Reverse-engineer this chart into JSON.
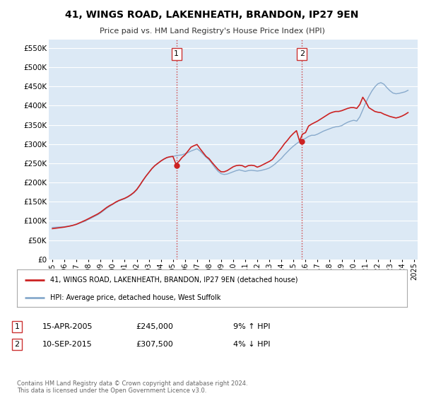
{
  "title": "41, WINGS ROAD, LAKENHEATH, BRANDON, IP27 9EN",
  "subtitle": "Price paid vs. HM Land Registry's House Price Index (HPI)",
  "ylabel_values": [
    0,
    50000,
    100000,
    150000,
    200000,
    250000,
    300000,
    350000,
    400000,
    450000,
    500000,
    550000
  ],
  "xlim_start": 1994.7,
  "xlim_end": 2025.3,
  "ylim_min": 0,
  "ylim_max": 572000,
  "bg_color": "#dce9f5",
  "outer_bg_color": "#ffffff",
  "grid_color": "#ffffff",
  "red_color": "#cc2222",
  "blue_color": "#88aacc",
  "transaction1_x": 2005.3,
  "transaction1_y": 245000,
  "transaction1_label": "1",
  "transaction2_x": 2015.7,
  "transaction2_y": 307500,
  "transaction2_label": "2",
  "legend_line1": "41, WINGS ROAD, LAKENHEATH, BRANDON, IP27 9EN (detached house)",
  "legend_line2": "HPI: Average price, detached house, West Suffolk",
  "note1_date": "15-APR-2005",
  "note1_price": "£245,000",
  "note1_hpi": "9% ↑ HPI",
  "note2_date": "10-SEP-2015",
  "note2_price": "£307,500",
  "note2_hpi": "4% ↓ HPI",
  "footer": "Contains HM Land Registry data © Crown copyright and database right 2024.\nThis data is licensed under the Open Government Licence v3.0.",
  "hpi_data_x": [
    1995.0,
    1995.25,
    1995.5,
    1995.75,
    1996.0,
    1996.25,
    1996.5,
    1996.75,
    1997.0,
    1997.25,
    1997.5,
    1997.75,
    1998.0,
    1998.25,
    1998.5,
    1998.75,
    1999.0,
    1999.25,
    1999.5,
    1999.75,
    2000.0,
    2000.25,
    2000.5,
    2000.75,
    2001.0,
    2001.25,
    2001.5,
    2001.75,
    2002.0,
    2002.25,
    2002.5,
    2002.75,
    2003.0,
    2003.25,
    2003.5,
    2003.75,
    2004.0,
    2004.25,
    2004.5,
    2004.75,
    2005.0,
    2005.25,
    2005.5,
    2005.75,
    2006.0,
    2006.25,
    2006.5,
    2006.75,
    2007.0,
    2007.25,
    2007.5,
    2007.75,
    2008.0,
    2008.25,
    2008.5,
    2008.75,
    2009.0,
    2009.25,
    2009.5,
    2009.75,
    2010.0,
    2010.25,
    2010.5,
    2010.75,
    2011.0,
    2011.25,
    2011.5,
    2011.75,
    2012.0,
    2012.25,
    2012.5,
    2012.75,
    2013.0,
    2013.25,
    2013.5,
    2013.75,
    2014.0,
    2014.25,
    2014.5,
    2014.75,
    2015.0,
    2015.25,
    2015.5,
    2015.75,
    2016.0,
    2016.25,
    2016.5,
    2016.75,
    2017.0,
    2017.25,
    2017.5,
    2017.75,
    2018.0,
    2018.25,
    2018.5,
    2018.75,
    2019.0,
    2019.25,
    2019.5,
    2019.75,
    2020.0,
    2020.25,
    2020.5,
    2020.75,
    2021.0,
    2021.25,
    2021.5,
    2021.75,
    2022.0,
    2022.25,
    2022.5,
    2022.75,
    2023.0,
    2023.25,
    2023.5,
    2023.75,
    2024.0,
    2024.25,
    2024.5
  ],
  "hpi_data_y": [
    83000,
    83500,
    84000,
    84500,
    85000,
    86000,
    87500,
    89000,
    91000,
    94000,
    97000,
    100000,
    104000,
    108000,
    112000,
    116000,
    121000,
    127000,
    133000,
    138000,
    143000,
    148000,
    152000,
    155000,
    158000,
    162000,
    167000,
    173000,
    181000,
    192000,
    204000,
    216000,
    226000,
    236000,
    244000,
    250000,
    256000,
    261000,
    265000,
    267000,
    268000,
    270000,
    271000,
    272000,
    275000,
    278000,
    282000,
    285000,
    288000,
    282000,
    274000,
    266000,
    259000,
    249000,
    238000,
    229000,
    223000,
    221000,
    222000,
    225000,
    228000,
    231000,
    233000,
    231000,
    229000,
    231000,
    232000,
    231000,
    230000,
    231000,
    233000,
    235000,
    238000,
    243000,
    249000,
    256000,
    263000,
    272000,
    280000,
    288000,
    295000,
    301000,
    307000,
    311000,
    315000,
    320000,
    323000,
    323000,
    326000,
    330000,
    334000,
    337000,
    340000,
    343000,
    345000,
    346000,
    348000,
    353000,
    357000,
    360000,
    362000,
    360000,
    371000,
    389000,
    408000,
    424000,
    438000,
    449000,
    457000,
    460000,
    456000,
    447000,
    439000,
    433000,
    431000,
    432000,
    434000,
    436000,
    440000
  ],
  "price_data_x": [
    1995.0,
    1995.25,
    1995.5,
    1995.75,
    1996.0,
    1996.25,
    1996.5,
    1996.75,
    1997.0,
    1997.25,
    1997.5,
    1997.75,
    1998.0,
    1998.25,
    1998.5,
    1998.75,
    1999.0,
    1999.25,
    1999.5,
    1999.75,
    2000.0,
    2000.25,
    2000.5,
    2000.75,
    2001.0,
    2001.25,
    2001.5,
    2001.75,
    2002.0,
    2002.25,
    2002.5,
    2002.75,
    2003.0,
    2003.25,
    2003.5,
    2003.75,
    2004.0,
    2004.25,
    2004.5,
    2004.75,
    2005.0,
    2005.25,
    2005.5,
    2005.75,
    2006.0,
    2006.25,
    2006.5,
    2006.75,
    2007.0,
    2007.25,
    2007.5,
    2007.75,
    2008.0,
    2008.25,
    2008.5,
    2008.75,
    2009.0,
    2009.25,
    2009.5,
    2009.75,
    2010.0,
    2010.25,
    2010.5,
    2010.75,
    2011.0,
    2011.25,
    2011.5,
    2011.75,
    2012.0,
    2012.25,
    2012.5,
    2012.75,
    2013.0,
    2013.25,
    2013.5,
    2013.75,
    2014.0,
    2014.25,
    2014.5,
    2014.75,
    2015.0,
    2015.25,
    2015.5,
    2015.75,
    2016.0,
    2016.25,
    2016.5,
    2016.75,
    2017.0,
    2017.25,
    2017.5,
    2017.75,
    2018.0,
    2018.25,
    2018.5,
    2018.75,
    2019.0,
    2019.25,
    2019.5,
    2019.75,
    2020.0,
    2020.25,
    2020.5,
    2020.75,
    2021.0,
    2021.25,
    2021.5,
    2021.75,
    2022.0,
    2022.25,
    2022.5,
    2022.75,
    2023.0,
    2023.25,
    2023.5,
    2023.75,
    2024.0,
    2024.25,
    2024.5
  ],
  "price_data_y": [
    80000,
    81000,
    82000,
    83000,
    84000,
    85500,
    87000,
    89000,
    91500,
    95000,
    98500,
    102000,
    106000,
    110000,
    114000,
    118000,
    123000,
    129000,
    135000,
    140000,
    144000,
    149000,
    153000,
    156000,
    159000,
    163000,
    168000,
    174000,
    182000,
    193000,
    205000,
    216000,
    226000,
    236000,
    244000,
    250000,
    256000,
    261000,
    265000,
    267000,
    268000,
    248000,
    255000,
    265000,
    272000,
    282000,
    292000,
    296000,
    299000,
    288000,
    278000,
    268000,
    262000,
    252000,
    243000,
    234000,
    228000,
    228000,
    231000,
    236000,
    241000,
    244000,
    245000,
    244000,
    240000,
    244000,
    245000,
    244000,
    240000,
    243000,
    247000,
    251000,
    255000,
    260000,
    270000,
    280000,
    290000,
    301000,
    310000,
    320000,
    328000,
    335000,
    308000,
    326000,
    330000,
    347000,
    352000,
    356000,
    360000,
    365000,
    370000,
    375000,
    380000,
    383000,
    385000,
    385000,
    387000,
    390000,
    393000,
    395000,
    395000,
    393000,
    403000,
    422000,
    410000,
    395000,
    390000,
    385000,
    383000,
    382000,
    378000,
    375000,
    372000,
    370000,
    368000,
    370000,
    373000,
    377000,
    382000
  ],
  "xticks": [
    1995,
    1996,
    1997,
    1998,
    1999,
    2000,
    2001,
    2002,
    2003,
    2004,
    2005,
    2006,
    2007,
    2008,
    2009,
    2010,
    2011,
    2012,
    2013,
    2014,
    2015,
    2016,
    2017,
    2018,
    2019,
    2020,
    2021,
    2022,
    2023,
    2024,
    2025
  ]
}
